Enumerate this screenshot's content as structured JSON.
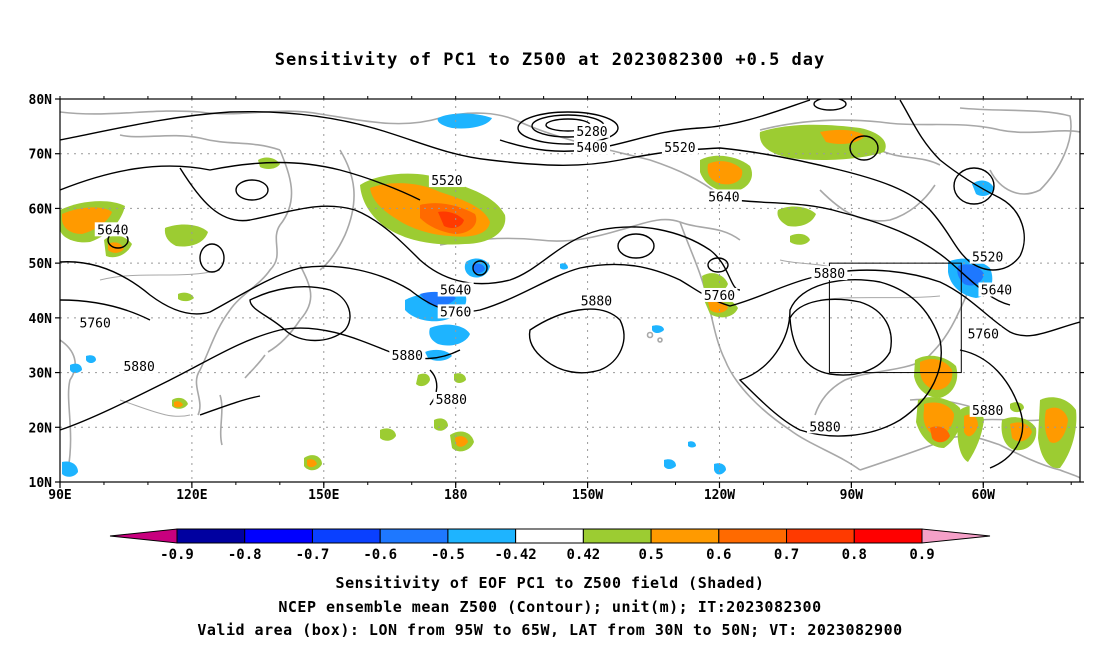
{
  "title": "Sensitivity of PC1 to Z500 at 2023082300 +0.5 day",
  "map": {
    "lon_labels": [
      "90E",
      "120E",
      "150E",
      "180",
      "150W",
      "120W",
      "90W",
      "60W"
    ],
    "lon_values": [
      90,
      120,
      150,
      180,
      210,
      240,
      270,
      300
    ],
    "lat_labels": [
      "80N",
      "70N",
      "60N",
      "50N",
      "40N",
      "30N",
      "20N",
      "10N"
    ],
    "lat_values": [
      80,
      70,
      60,
      50,
      40,
      30,
      20,
      10
    ],
    "lon_range": [
      90,
      322
    ],
    "lat_range": [
      10,
      80
    ],
    "grid": "dotted",
    "contour_labels": [
      {
        "text": "5280",
        "lon": 211,
        "lat": 74
      },
      {
        "text": "5400",
        "lon": 211,
        "lat": 71
      },
      {
        "text": "5520",
        "lon": 178,
        "lat": 65
      },
      {
        "text": "5520",
        "lon": 231,
        "lat": 71
      },
      {
        "text": "5640",
        "lon": 241,
        "lat": 62
      },
      {
        "text": "5640",
        "lon": 102,
        "lat": 56
      },
      {
        "text": "5640",
        "lon": 180,
        "lat": 45
      },
      {
        "text": "5760",
        "lon": 180,
        "lat": 41
      },
      {
        "text": "5760",
        "lon": 98,
        "lat": 39
      },
      {
        "text": "5760",
        "lon": 240,
        "lat": 44
      },
      {
        "text": "5880",
        "lon": 212,
        "lat": 43
      },
      {
        "text": "5880",
        "lon": 169,
        "lat": 33
      },
      {
        "text": "5880",
        "lon": 108,
        "lat": 31
      },
      {
        "text": "5880",
        "lon": 179,
        "lat": 25
      },
      {
        "text": "5880",
        "lon": 265,
        "lat": 48
      },
      {
        "text": "5880",
        "lon": 264,
        "lat": 20
      },
      {
        "text": "5880",
        "lon": 301,
        "lat": 23
      },
      {
        "text": "5520",
        "lon": 301,
        "lat": 51
      },
      {
        "text": "5640",
        "lon": 303,
        "lat": 45
      },
      {
        "text": "5760",
        "lon": 300,
        "lat": 37
      }
    ],
    "valid_box": {
      "lon": [
        265,
        295
      ],
      "lat": [
        30,
        50
      ]
    }
  },
  "colorbar": {
    "labels": [
      "-0.9",
      "-0.8",
      "-0.7",
      "-0.6",
      "-0.5",
      "-0.42",
      "0.42",
      "0.5",
      "0.6",
      "0.7",
      "0.8",
      "0.9"
    ],
    "colors": [
      "#0000a0",
      "#0000ff",
      "#0a40ff",
      "#1e78ff",
      "#1eb4ff",
      "#ffffff",
      "#9ccc32",
      "#ff9a00",
      "#ff6a00",
      "#ff3a00",
      "#ff0000"
    ],
    "under_color": "#c8007e",
    "over_color": "#f5a0c8"
  },
  "captions": [
    "Sensitivity of EOF PC1 to Z500 field (Shaded)",
    "NCEP ensemble mean Z500 (Contour); unit(m); IT:2023082300",
    "Valid area (box): LON from 95W to 65W, LAT from 30N to 50N; VT: 2023082900"
  ]
}
